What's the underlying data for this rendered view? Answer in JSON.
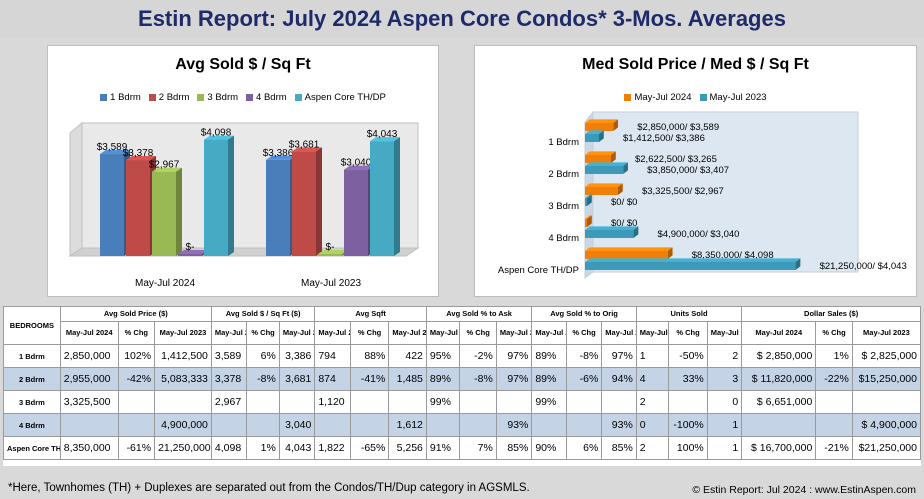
{
  "title": "Estin Report:  July 2024 Aspen Core Condos* 3-Mos. Averages",
  "chart_data": [
    {
      "type": "bar",
      "title": "Avg Sold $ / Sq Ft",
      "categories": [
        "May-Jul 2024",
        "May-Jul 2023"
      ],
      "series": [
        {
          "name": "1 Bdrm",
          "color": "#4a7ebb",
          "values": [
            3589,
            3386
          ],
          "labels": [
            "$3,589",
            "$3,386"
          ]
        },
        {
          "name": "2 Bdrm",
          "color": "#be4b48",
          "values": [
            3378,
            3681
          ],
          "labels": [
            "$3,378",
            "$3,681"
          ]
        },
        {
          "name": "3 Bdrm",
          "color": "#98b954",
          "values": [
            2967,
            0
          ],
          "labels": [
            "$2,967",
            "$-"
          ]
        },
        {
          "name": "4 Bdrm",
          "color": "#7d60a0",
          "values": [
            0,
            3040
          ],
          "labels": [
            "$-",
            "$3,040"
          ]
        },
        {
          "name": "Aspen Core TH/DP",
          "color": "#46aac5",
          "values": [
            4098,
            4043
          ],
          "labels": [
            "$4,098",
            "$4,043"
          ]
        }
      ],
      "ylim": [
        0,
        5000
      ]
    },
    {
      "type": "bar",
      "orientation": "horizontal",
      "title": "Med Sold Price / Med $ / Sq Ft",
      "categories": [
        "1 Bdrm",
        "2 Bdrm",
        "3 Bdrm",
        "4 Bdrm",
        "Aspen Core TH/DP"
      ],
      "series": [
        {
          "name": "May-Jul 2024",
          "color": "#f07f09",
          "values": [
            2850000,
            2622500,
            3325500,
            0,
            8350000
          ],
          "labels": [
            "$2,850,000/ $3,589",
            "$2,622,500/ $3,265",
            "$3,325,500/ $2,967",
            "$0/ $0",
            "$8,350,000/ $4,098"
          ]
        },
        {
          "name": "May-Jul 2023",
          "color": "#3c9ab8",
          "values": [
            1412500,
            3850000,
            0,
            4900000,
            21250000
          ],
          "labels": [
            "$1,412,500/ $3,386",
            "$3,850,000/ $3,407",
            "$0/ $0",
            "$4,900,000/ $3,040",
            "$21,250,000/ $4,043"
          ]
        }
      ],
      "xlim": [
        0,
        22000000
      ]
    }
  ],
  "table": {
    "bedrooms_header": "BEDROOMS",
    "groups": [
      "Avg Sold Price ($)",
      "Avg Sold $ / Sq Ft ($)",
      "Avg Sqft",
      "Avg Sold % to Ask",
      "Avg Sold % to Orig",
      "Units Sold",
      "Dollar Sales ($)"
    ],
    "subheaders": [
      "May-Jul 2024",
      "% Chg",
      "May-Jul 2023",
      "May-Jul 2024",
      "% Chg",
      "May-Jul 2023",
      "May-Jul 2024",
      "% Chg",
      "May-Jul 2023",
      "May-Jul 2024",
      "% Chg",
      "May-Jul 2023",
      "May-Jul 2024",
      "% Chg",
      "May-Jul 2023",
      "May-Jul 2024",
      "% Chg",
      "May-Jul 2023",
      "May-Jul 2024",
      "% Chg",
      "May-Jul 2023"
    ],
    "rows": [
      {
        "label": "1 Bdrm",
        "cells": [
          "2,850,000",
          "102%",
          "1,412,500",
          "3,589",
          "6%",
          "3,386",
          "794",
          "88%",
          "422",
          "95%",
          "-2%",
          "97%",
          "89%",
          "-8%",
          "97%",
          "1",
          "-50%",
          "2",
          "$  2,850,000",
          "1%",
          "$  2,825,000"
        ]
      },
      {
        "label": "2 Bdrm",
        "cells": [
          "2,955,000",
          "-42%",
          "5,083,333",
          "3,378",
          "-8%",
          "3,681",
          "874",
          "-41%",
          "1,485",
          "89%",
          "-8%",
          "97%",
          "89%",
          "-6%",
          "94%",
          "4",
          "33%",
          "3",
          "$ 11,820,000",
          "-22%",
          "$15,250,000"
        ]
      },
      {
        "label": "3 Bdrm",
        "cells": [
          "3,325,500",
          "",
          "",
          "2,967",
          "",
          "",
          "1,120",
          "",
          "",
          "99%",
          "",
          "",
          "99%",
          "",
          "",
          "2",
          "",
          "0",
          "$  6,651,000",
          "",
          ""
        ]
      },
      {
        "label": "4 Bdrm",
        "cells": [
          "",
          "",
          "4,900,000",
          "",
          "",
          "3,040",
          "",
          "",
          "1,612",
          "",
          "",
          "93%",
          "",
          "",
          "93%",
          "0",
          "-100%",
          "1",
          "",
          "",
          "$  4,900,000"
        ]
      },
      {
        "label": "Aspen Core TH/DP",
        "cells": [
          "8,350,000",
          "-61%",
          "21,250,000",
          "4,098",
          "1%",
          "4,043",
          "1,822",
          "-65%",
          "5,256",
          "91%",
          "7%",
          "85%",
          "90%",
          "6%",
          "85%",
          "2",
          "100%",
          "1",
          "$ 16,700,000",
          "-21%",
          "$21,250,000"
        ]
      }
    ]
  },
  "footnote": "*Here, Townhomes (TH) + Duplexes are separated out from the Condos/TH/Dup category in AGSMLS.",
  "credit": "© Estin Report: Jul 2024 : www.EstinAspen.com"
}
